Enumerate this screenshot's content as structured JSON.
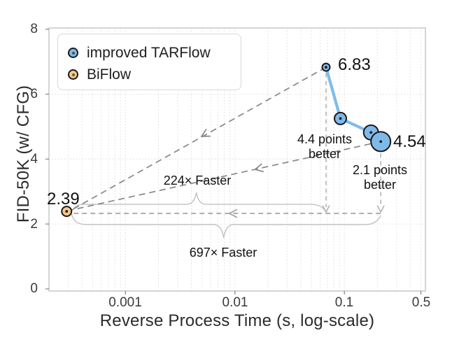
{
  "chart_data": {
    "type": "scatter",
    "title": "",
    "xlabel": "Reverse Process Time (s, log-scale)",
    "ylabel": "FID-50K (w/ CFG)",
    "x_scale": "log",
    "xlim": [
      0.0002,
      0.55
    ],
    "ylim": [
      0,
      8
    ],
    "grid": true,
    "legend_position": "upper-left",
    "x_ticks": [
      {
        "v": 0.001,
        "label": "0.001"
      },
      {
        "v": 0.01,
        "label": "0.01"
      },
      {
        "v": 0.1,
        "label": "0.1"
      },
      {
        "v": 0.5,
        "label": "0.5"
      }
    ],
    "y_ticks": [
      {
        "v": 8,
        "label": "8"
      },
      {
        "v": 6,
        "label": "6"
      },
      {
        "v": 4,
        "label": "4"
      },
      {
        "v": 2,
        "label": "2"
      },
      {
        "v": 0,
        "label": "0"
      }
    ],
    "series": [
      {
        "name": "improved TARFlow",
        "color": "#7FB9E8",
        "edge_color": "#1a1a1a",
        "line_color": "#7FBCEC",
        "connected": true,
        "points": [
          {
            "x": 0.068,
            "y": 6.83,
            "r": 5.5
          },
          {
            "x": 0.092,
            "y": 5.25,
            "r": 8.5
          },
          {
            "x": 0.175,
            "y": 4.82,
            "r": 10.5
          },
          {
            "x": 0.215,
            "y": 4.54,
            "r": 14
          }
        ]
      },
      {
        "name": "BiFlow",
        "color": "#F4C78C",
        "edge_color": "#1a1a1a",
        "connected": false,
        "points": [
          {
            "x": 0.00029,
            "y": 2.39,
            "r": 7
          }
        ]
      }
    ],
    "annotations": {
      "p1_label": "6.83",
      "p4_label": "4.54",
      "biflow_label": "2.39",
      "better1": {
        "line1": "4.4 points",
        "line2": "better"
      },
      "better2": {
        "line1": "2.1 points",
        "line2": "better"
      },
      "faster1": "224× Faster",
      "faster2": "697× Faster"
    },
    "colors": {
      "diagonal_arrow": "#878787",
      "vertical_arrow": "#b3b3b3",
      "horizontal_arrow": "#9e9e9e",
      "brace": "#c0c0c0",
      "grid": "#dcdcdc",
      "spine": "#c7c7c7",
      "tick": "#8a8a8a",
      "center_dot": "#1a1a1a"
    }
  },
  "legend": {
    "items": [
      {
        "label": "improved TARFlow"
      },
      {
        "label": "BiFlow"
      }
    ]
  }
}
